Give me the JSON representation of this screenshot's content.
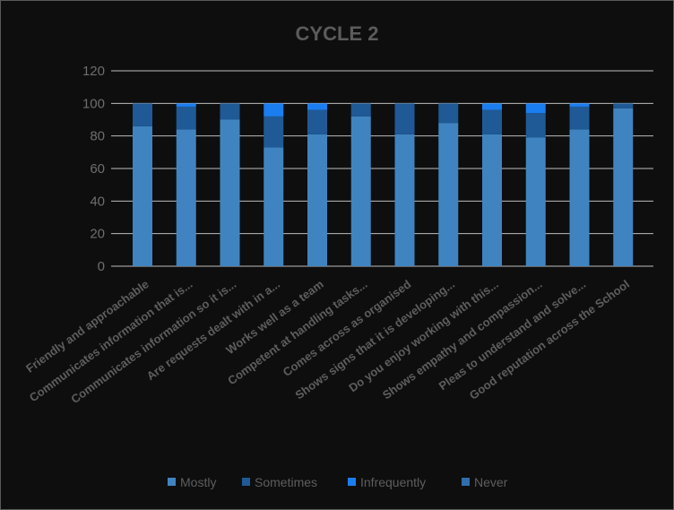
{
  "chart_data": {
    "type": "bar",
    "stacked": true,
    "title": "CYCLE 2",
    "xlabel": "",
    "ylabel": "",
    "ylim": [
      0,
      120
    ],
    "yticks": [
      0,
      20,
      40,
      60,
      80,
      100,
      120
    ],
    "grid": true,
    "legend_position": "bottom",
    "categories": [
      "Friendly and approachable",
      "Communicates information that is...",
      "Communicates information so it is...",
      "Are requests dealt with in a...",
      "Works well as a team",
      "Competent at handling tasks...",
      "Comes across as organised",
      "Shows signs that it is developing...",
      "Do you enjoy working with this...",
      "Shows empathy and compassion...",
      "Pleas to understand and solve...",
      "Good reputation across the School"
    ],
    "series": [
      {
        "name": "Mostly",
        "color": "#3f84c1",
        "values": [
          86,
          84,
          90,
          73,
          81,
          92,
          81,
          88,
          81,
          79,
          84,
          97
        ]
      },
      {
        "name": "Sometimes",
        "color": "#1f5a96",
        "values": [
          14,
          14,
          10,
          19,
          15,
          8,
          19,
          12,
          15,
          15,
          14,
          3
        ]
      },
      {
        "name": "Infrequently",
        "color": "#1b7ef0",
        "values": [
          0,
          2,
          0,
          8,
          4,
          0,
          0,
          0,
          4,
          6,
          2,
          0
        ]
      },
      {
        "name": "Never",
        "color": "#2f6eaa",
        "values": [
          0,
          0,
          0,
          0,
          0,
          0,
          0,
          0,
          0,
          0,
          0,
          0
        ]
      }
    ]
  }
}
